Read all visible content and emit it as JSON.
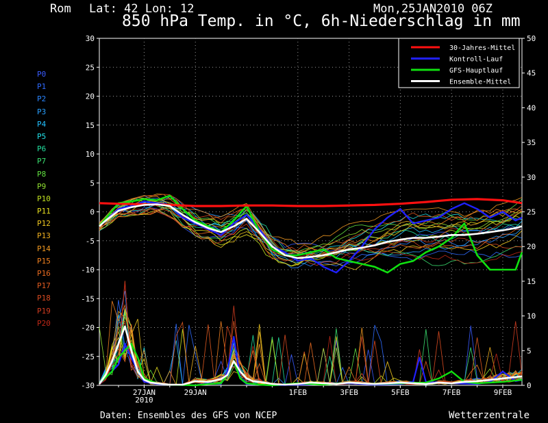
{
  "header": {
    "location": "Rom",
    "coords": "Lat: 42 Lon: 12",
    "run": "Mon,25JAN2010 06Z",
    "title": "850 hPa Temp. in °C, 6h-Niederschlag in mm"
  },
  "footer": {
    "source": "Daten: Ensembles des GFS von NCEP",
    "brand": "Wetterzentrale"
  },
  "members": [
    {
      "label": "P0",
      "color": "#3a5bff"
    },
    {
      "label": "P1",
      "color": "#2f6bff"
    },
    {
      "label": "P2",
      "color": "#2a85ff"
    },
    {
      "label": "P3",
      "color": "#2aa0ff"
    },
    {
      "label": "P4",
      "color": "#22c0ff"
    },
    {
      "label": "P5",
      "color": "#22e0e8"
    },
    {
      "label": "P6",
      "color": "#22e0a0"
    },
    {
      "label": "P7",
      "color": "#3ae070"
    },
    {
      "label": "P8",
      "color": "#60e040"
    },
    {
      "label": "P9",
      "color": "#90e030"
    },
    {
      "label": "P10",
      "color": "#c0e020"
    },
    {
      "label": "P11",
      "color": "#e8e020"
    },
    {
      "label": "P12",
      "color": "#f0c820"
    },
    {
      "label": "P13",
      "color": "#f0b020"
    },
    {
      "label": "P14",
      "color": "#f09820"
    },
    {
      "label": "P15",
      "color": "#f08020"
    },
    {
      "label": "P16",
      "color": "#e86a20"
    },
    {
      "label": "P17",
      "color": "#e05a20"
    },
    {
      "label": "P18",
      "color": "#d84a20"
    },
    {
      "label": "P19",
      "color": "#d03c20"
    },
    {
      "label": "P20",
      "color": "#c02818"
    }
  ],
  "chart_data": {
    "type": "line",
    "ylabel_left": "",
    "ylabel_right": "",
    "ylim_left": [
      -30,
      30
    ],
    "ylim_right": [
      0,
      50
    ],
    "left_ticks": [
      30,
      25,
      20,
      15,
      10,
      5,
      0,
      -5,
      -10,
      -15,
      -20,
      -25,
      -30
    ],
    "right_ticks": [
      50,
      45,
      40,
      35,
      30,
      25,
      20,
      15,
      10,
      5,
      0
    ],
    "x_labels": [
      {
        "t": 27,
        "label": "27JAN",
        "sub": "2010"
      },
      {
        "t": 29,
        "label": "29JAN",
        "sub": ""
      },
      {
        "t": 33,
        "label": "1FEB",
        "sub": ""
      },
      {
        "t": 35,
        "label": "3FEB",
        "sub": ""
      },
      {
        "t": 37,
        "label": "5FEB",
        "sub": ""
      },
      {
        "t": 39,
        "label": "7FEB",
        "sub": ""
      },
      {
        "t": 41,
        "label": "9FEB",
        "sub": ""
      }
    ],
    "x_range": [
      25.25,
      41.75
    ],
    "grid": true,
    "legend": [
      {
        "name": "30-Jahres-Mittel",
        "color": "#ff1010"
      },
      {
        "name": "Kontroll-Lauf",
        "color": "#2020ff"
      },
      {
        "name": "GFS-Hauptlauf",
        "color": "#10e010"
      },
      {
        "name": "Ensemble-Mittel",
        "color": "#ffffff"
      }
    ],
    "series": [
      {
        "name": "30-Jahres-Mittel",
        "axis": "temp",
        "x": [
          25.25,
          26,
          27,
          28,
          29,
          30,
          31,
          32,
          33,
          34,
          35,
          36,
          37,
          38,
          39,
          40,
          41,
          41.75
        ],
        "values": [
          1.5,
          1.4,
          1.3,
          1.2,
          1.0,
          1.0,
          1.1,
          1.1,
          1.0,
          1.0,
          1.1,
          1.2,
          1.4,
          1.7,
          2.1,
          2.2,
          2.0,
          1.5
        ]
      },
      {
        "name": "Ensemble-Mittel",
        "axis": "temp",
        "x": [
          25.25,
          25.5,
          26,
          26.5,
          27,
          27.5,
          28,
          28.5,
          29,
          29.5,
          30,
          30.5,
          31,
          31.5,
          32,
          32.5,
          33,
          33.5,
          34,
          34.5,
          35,
          35.5,
          36,
          36.5,
          37,
          37.5,
          38,
          38.5,
          39,
          39.5,
          40,
          40.5,
          41,
          41.5,
          41.75
        ],
        "values": [
          -2.5,
          -1.5,
          0.2,
          0.8,
          1.2,
          1.3,
          1.0,
          -0.5,
          -1.8,
          -2.8,
          -3.5,
          -2.5,
          -1.2,
          -3.5,
          -6.0,
          -7.5,
          -8.0,
          -7.8,
          -7.5,
          -7.0,
          -6.5,
          -6.2,
          -5.8,
          -5.2,
          -4.8,
          -4.5,
          -4.5,
          -4.3,
          -4.0,
          -4.0,
          -3.8,
          -3.5,
          -3.2,
          -2.8,
          -2.5
        ]
      },
      {
        "name": "Kontroll-Lauf",
        "axis": "temp",
        "x": [
          25.25,
          26,
          26.5,
          27,
          27.5,
          28,
          28.5,
          29,
          29.5,
          30,
          30.5,
          31,
          31.5,
          32,
          32.5,
          33,
          33.5,
          34,
          34.5,
          35,
          35.5,
          36,
          36.5,
          37,
          37.5,
          38,
          38.5,
          39,
          39.5,
          40,
          40.5,
          41,
          41.5,
          41.75
        ],
        "values": [
          -2.5,
          0.5,
          1.0,
          1.8,
          1.5,
          1.2,
          -1.0,
          -2.0,
          -3.0,
          -4.0,
          -2.0,
          -0.5,
          -3.0,
          -6.0,
          -7.0,
          -8.5,
          -8.0,
          -9.5,
          -10.5,
          -8.5,
          -6.0,
          -3.0,
          -1.0,
          0.5,
          -2.0,
          -1.5,
          -1.0,
          0.5,
          1.5,
          0.5,
          -1.0,
          0.0,
          -1.5,
          -1.0
        ]
      },
      {
        "name": "GFS-Hauptlauf",
        "axis": "temp",
        "x": [
          25.25,
          26,
          26.5,
          27,
          27.5,
          28,
          28.5,
          29,
          29.5,
          30,
          30.5,
          31,
          31.5,
          32,
          32.5,
          33,
          33.5,
          34,
          34.5,
          35,
          35.5,
          36,
          36.5,
          37,
          37.5,
          38,
          38.5,
          39,
          39.5,
          40,
          40.5,
          41,
          41.5,
          41.75
        ],
        "values": [
          -2.5,
          1.5,
          1.8,
          2.2,
          2.0,
          2.8,
          0.5,
          -1.5,
          -2.5,
          -3.5,
          -1.5,
          1.0,
          -3.5,
          -6.5,
          -7.5,
          -7.5,
          -7.0,
          -6.5,
          -8.0,
          -8.5,
          -9.0,
          -9.5,
          -10.5,
          -9.0,
          -8.5,
          -7.0,
          -6.0,
          -4.5,
          -2.0,
          -7.5,
          -10.0,
          -10.0,
          -10.0,
          -7.0
        ]
      },
      {
        "name": "Ensemble-Mittel Niederschlag",
        "axis": "precip",
        "x": [
          25.25,
          25.5,
          25.75,
          26,
          26.25,
          26.5,
          26.75,
          27,
          27.25,
          27.5,
          28,
          28.5,
          29,
          29.5,
          30,
          30.25,
          30.5,
          30.75,
          31,
          31.25,
          31.5,
          32,
          32.5,
          33,
          33.5,
          34,
          34.5,
          35,
          35.5,
          36,
          36.5,
          37,
          37.5,
          38,
          38.5,
          39,
          39.5,
          40,
          40.5,
          41,
          41.5,
          41.75
        ],
        "values": [
          0.2,
          1.5,
          3.5,
          6.0,
          8.5,
          5.0,
          2.0,
          0.8,
          0.4,
          0.3,
          0.1,
          0.1,
          0.6,
          0.5,
          0.9,
          1.5,
          3.5,
          2.0,
          1.0,
          0.6,
          0.5,
          0.2,
          0.1,
          0.2,
          0.4,
          0.3,
          0.2,
          0.4,
          0.3,
          0.2,
          0.3,
          0.4,
          0.3,
          0.2,
          0.4,
          0.3,
          0.5,
          0.6,
          0.8,
          1.0,
          1.2,
          1.3
        ]
      },
      {
        "name": "GFS-Hauptlauf Niederschlag",
        "axis": "precip",
        "x": [
          25.25,
          25.75,
          26,
          26.25,
          26.5,
          26.75,
          27,
          27.5,
          28,
          29,
          29.5,
          30,
          30.25,
          30.5,
          30.75,
          31,
          31.5,
          32,
          33,
          34,
          35,
          36,
          37,
          38,
          38.5,
          39,
          39.5,
          40,
          41,
          41.75
        ],
        "values": [
          0.3,
          2.0,
          4.0,
          5.0,
          6.0,
          4.0,
          1.0,
          0.3,
          0.1,
          0.0,
          0.2,
          0.3,
          1.5,
          3.5,
          1.0,
          0.3,
          0.1,
          0.0,
          0.3,
          0.1,
          0.4,
          0.2,
          0.3,
          0.4,
          1.0,
          2.0,
          0.5,
          0.3,
          0.5,
          0.8
        ]
      },
      {
        "name": "Kontroll-Lauf Niederschlag",
        "axis": "precip",
        "x": [
          25.25,
          26,
          26.25,
          26.5,
          26.75,
          27,
          27.5,
          28,
          29,
          29.5,
          30,
          30.25,
          30.5,
          30.75,
          31,
          32,
          33,
          34,
          35,
          36,
          37,
          37.5,
          37.75,
          38,
          39,
          40,
          40.5,
          41,
          41.5,
          41.75
        ],
        "values": [
          0.2,
          3.0,
          6.0,
          4.0,
          2.0,
          0.5,
          0.2,
          0.1,
          0.0,
          0.3,
          0.2,
          2.0,
          7.0,
          1.0,
          0.2,
          0.0,
          0.1,
          0.2,
          0.3,
          0.1,
          0.2,
          0.5,
          4.0,
          0.5,
          0.3,
          0.2,
          0.5,
          2.0,
          0.6,
          0.8
        ]
      }
    ]
  }
}
